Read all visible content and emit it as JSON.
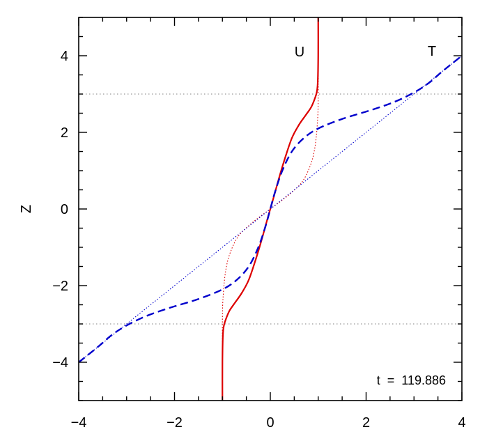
{
  "chart_data": {
    "type": "line",
    "title": "",
    "xlabel": "",
    "ylabel": "Z",
    "xlim": [
      -4,
      4
    ],
    "ylim": [
      -5,
      5
    ],
    "x_ticks": [
      -4,
      -2,
      0,
      2,
      4
    ],
    "x_tick_labels": [
      "−4",
      "−2",
      "0",
      "2",
      "4"
    ],
    "y_ticks": [
      -4,
      -2,
      0,
      2,
      4
    ],
    "y_tick_labels": [
      "−4",
      "−2",
      "0",
      "2",
      "4"
    ],
    "grid": false,
    "annotations": {
      "u_label": "U",
      "t_label": "T",
      "time_label": "t  =  119.886"
    },
    "reference_lines": [
      {
        "z": 3,
        "color": "#999999"
      },
      {
        "z": -3,
        "color": "#999999"
      }
    ],
    "series": [
      {
        "name": "U",
        "style": "solid",
        "color": "#dd0000",
        "points": [
          [
            -1.0,
            -5.0
          ],
          [
            -1.0,
            -4.0
          ],
          [
            -0.99,
            -3.3
          ],
          [
            -0.97,
            -3.05
          ],
          [
            -0.92,
            -2.85
          ],
          [
            -0.85,
            -2.65
          ],
          [
            -0.74,
            -2.45
          ],
          [
            -0.6,
            -2.2
          ],
          [
            -0.45,
            -1.85
          ],
          [
            -0.3,
            -1.3
          ],
          [
            -0.18,
            -0.8
          ],
          [
            -0.08,
            -0.35
          ],
          [
            0.0,
            0.0
          ],
          [
            0.08,
            0.35
          ],
          [
            0.18,
            0.8
          ],
          [
            0.3,
            1.3
          ],
          [
            0.45,
            1.85
          ],
          [
            0.6,
            2.2
          ],
          [
            0.74,
            2.45
          ],
          [
            0.85,
            2.65
          ],
          [
            0.92,
            2.85
          ],
          [
            0.97,
            3.05
          ],
          [
            0.99,
            3.3
          ],
          [
            1.0,
            4.0
          ],
          [
            1.0,
            5.0
          ]
        ]
      },
      {
        "name": "T",
        "style": "dashed",
        "color": "#0000cc",
        "points": [
          [
            -4.0,
            -4.0
          ],
          [
            -3.6,
            -3.6
          ],
          [
            -3.3,
            -3.28
          ],
          [
            -3.0,
            -3.04
          ],
          [
            -2.6,
            -2.8
          ],
          [
            -2.1,
            -2.58
          ],
          [
            -1.5,
            -2.35
          ],
          [
            -1.0,
            -2.1
          ],
          [
            -0.7,
            -1.85
          ],
          [
            -0.45,
            -1.5
          ],
          [
            -0.25,
            -1.0
          ],
          [
            -0.1,
            -0.45
          ],
          [
            0.0,
            0.0
          ],
          [
            0.1,
            0.45
          ],
          [
            0.25,
            1.0
          ],
          [
            0.45,
            1.5
          ],
          [
            0.7,
            1.85
          ],
          [
            1.0,
            2.1
          ],
          [
            1.5,
            2.35
          ],
          [
            2.1,
            2.58
          ],
          [
            2.6,
            2.8
          ],
          [
            3.0,
            3.04
          ],
          [
            3.3,
            3.28
          ],
          [
            3.6,
            3.6
          ],
          [
            4.0,
            4.0
          ]
        ]
      },
      {
        "name": "U initial",
        "style": "dotted",
        "color": "#dd0000",
        "points": [
          [
            -1.0,
            -5.0
          ],
          [
            -1.0,
            -2.9
          ],
          [
            -0.98,
            -2.2
          ],
          [
            -0.93,
            -1.6
          ],
          [
            -0.84,
            -1.15
          ],
          [
            -0.66,
            -0.7
          ],
          [
            -0.35,
            -0.33
          ],
          [
            0.0,
            0.0
          ],
          [
            0.35,
            0.33
          ],
          [
            0.66,
            0.7
          ],
          [
            0.84,
            1.15
          ],
          [
            0.93,
            1.6
          ],
          [
            0.98,
            2.2
          ],
          [
            1.0,
            2.9
          ],
          [
            1.0,
            5.0
          ]
        ]
      },
      {
        "name": "T initial",
        "style": "dotted",
        "color": "#0000cc",
        "points": [
          [
            -4.0,
            -4.0
          ],
          [
            4.0,
            4.0
          ]
        ]
      }
    ]
  }
}
